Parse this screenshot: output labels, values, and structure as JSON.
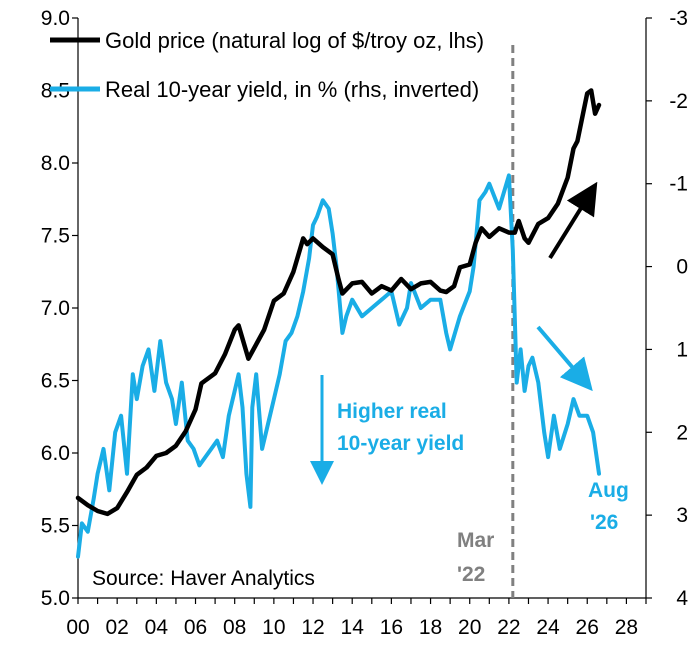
{
  "chart_data": {
    "type": "line",
    "x_axis": {
      "tick_labels": [
        "00",
        "02",
        "04",
        "06",
        "08",
        "10",
        "12",
        "14",
        "16",
        "18",
        "20",
        "22",
        "24",
        "26",
        "28"
      ],
      "range": [
        2000,
        2029
      ]
    },
    "y_left": {
      "tick_labels": [
        "9.0",
        "8.5",
        "8.0",
        "7.5",
        "7.0",
        "6.5",
        "6.0",
        "5.5",
        "5.0"
      ],
      "range": [
        5.0,
        9.0
      ]
    },
    "y_right": {
      "tick_labels": [
        "-3",
        "-2",
        "-1",
        "0",
        "1",
        "2",
        "3",
        "4"
      ],
      "range": [
        -3,
        4
      ],
      "inverted": true
    },
    "legend": {
      "placement": "top-left",
      "entries": [
        {
          "label": "Gold price (natural log of $/troy oz, lhs)",
          "color": "#000000"
        },
        {
          "label": "Real 10-year yield, in % (rhs, inverted)",
          "color": "#1AADE6"
        }
      ]
    },
    "series": [
      {
        "name": "Gold price (natural log of $/troy oz, lhs)",
        "axis": "left",
        "color": "#000000",
        "x": [
          2000.0,
          2000.5,
          2001.0,
          2001.5,
          2002.0,
          2002.5,
          2003.0,
          2003.5,
          2004.0,
          2004.5,
          2005.0,
          2005.5,
          2006.0,
          2006.3,
          2006.5,
          2007.0,
          2007.5,
          2008.0,
          2008.2,
          2008.7,
          2008.9,
          2009.5,
          2010.0,
          2010.5,
          2011.0,
          2011.5,
          2011.7,
          2012.0,
          2012.5,
          2013.0,
          2013.3,
          2013.5,
          2014.0,
          2014.5,
          2015.0,
          2015.5,
          2016.0,
          2016.5,
          2017.0,
          2017.5,
          2018.0,
          2018.5,
          2018.8,
          2019.2,
          2019.5,
          2020.0,
          2020.3,
          2020.6,
          2021.0,
          2021.5,
          2022.0,
          2022.3,
          2022.5,
          2022.8,
          2023.0,
          2023.5,
          2024.0,
          2024.5,
          2025.0,
          2025.3,
          2025.5,
          2025.8,
          2026.0,
          2026.2,
          2026.4,
          2026.6
        ],
        "values": [
          5.69,
          5.64,
          5.6,
          5.58,
          5.62,
          5.73,
          5.85,
          5.9,
          5.98,
          6.0,
          6.05,
          6.15,
          6.3,
          6.48,
          6.5,
          6.55,
          6.68,
          6.85,
          6.88,
          6.65,
          6.7,
          6.85,
          7.05,
          7.1,
          7.25,
          7.48,
          7.44,
          7.48,
          7.42,
          7.37,
          7.2,
          7.1,
          7.17,
          7.18,
          7.1,
          7.15,
          7.12,
          7.2,
          7.13,
          7.17,
          7.18,
          7.12,
          7.11,
          7.15,
          7.28,
          7.3,
          7.45,
          7.55,
          7.49,
          7.55,
          7.52,
          7.52,
          7.6,
          7.48,
          7.45,
          7.58,
          7.62,
          7.72,
          7.9,
          8.1,
          8.15,
          8.35,
          8.48,
          8.5,
          8.34,
          8.4
        ]
      },
      {
        "name": "Real 10-year yield, in % (rhs, inverted)",
        "axis": "right",
        "color": "#1AADE6",
        "x": [
          2000.0,
          2000.2,
          2000.5,
          2000.8,
          2001.0,
          2001.3,
          2001.6,
          2001.9,
          2002.2,
          2002.5,
          2002.8,
          2003.0,
          2003.3,
          2003.6,
          2003.9,
          2004.2,
          2004.5,
          2004.8,
          2005.0,
          2005.3,
          2005.6,
          2005.9,
          2006.2,
          2006.5,
          2006.8,
          2007.1,
          2007.4,
          2007.7,
          2008.0,
          2008.2,
          2008.4,
          2008.6,
          2008.8,
          2008.9,
          2009.1,
          2009.4,
          2009.7,
          2010.0,
          2010.3,
          2010.6,
          2010.9,
          2011.2,
          2011.5,
          2011.8,
          2012.0,
          2012.2,
          2012.5,
          2012.8,
          2013.0,
          2013.2,
          2013.5,
          2013.7,
          2014.0,
          2014.5,
          2015.0,
          2015.5,
          2016.0,
          2016.4,
          2016.8,
          2017.0,
          2017.5,
          2018.0,
          2018.5,
          2018.8,
          2019.0,
          2019.5,
          2020.0,
          2020.2,
          2020.5,
          2020.8,
          2021.0,
          2021.5,
          2022.0,
          2022.2,
          2022.4,
          2022.6,
          2022.8,
          2023.0,
          2023.2,
          2023.5,
          2023.8,
          2024.0,
          2024.3,
          2024.6,
          2025.0,
          2025.3,
          2025.6,
          2026.0,
          2026.3,
          2026.6
        ],
        "values": [
          3.5,
          3.1,
          3.2,
          2.8,
          2.5,
          2.2,
          2.7,
          2.0,
          1.8,
          2.5,
          1.3,
          1.6,
          1.2,
          1.0,
          1.5,
          0.9,
          1.4,
          1.6,
          1.9,
          1.4,
          2.1,
          2.2,
          2.4,
          2.3,
          2.2,
          2.1,
          2.3,
          1.8,
          1.5,
          1.3,
          1.7,
          2.5,
          2.9,
          1.7,
          1.3,
          2.2,
          1.9,
          1.6,
          1.3,
          0.9,
          0.8,
          0.6,
          0.3,
          -0.1,
          -0.5,
          -0.6,
          -0.8,
          -0.7,
          -0.4,
          0.0,
          0.8,
          0.6,
          0.4,
          0.6,
          0.5,
          0.4,
          0.3,
          0.7,
          0.5,
          0.2,
          0.5,
          0.4,
          0.4,
          0.8,
          1.0,
          0.6,
          0.3,
          0.0,
          -0.8,
          -0.9,
          -1.0,
          -0.7,
          -1.1,
          -0.2,
          1.4,
          1.0,
          1.5,
          1.2,
          1.1,
          1.4,
          2.0,
          2.3,
          1.8,
          2.2,
          1.9,
          1.6,
          1.8,
          1.8,
          2.0,
          2.5
        ]
      }
    ],
    "reference_line": {
      "x": 2022.2,
      "label_line1": "Mar",
      "label_line2": "'22",
      "color": "#808080"
    },
    "annotations": {
      "blue_text_line1": "Higher real",
      "blue_text_line2": "10-year yield",
      "end_label_line1": "Aug",
      "end_label_line2": "'26",
      "source": "Source: Haver Analytics"
    }
  }
}
